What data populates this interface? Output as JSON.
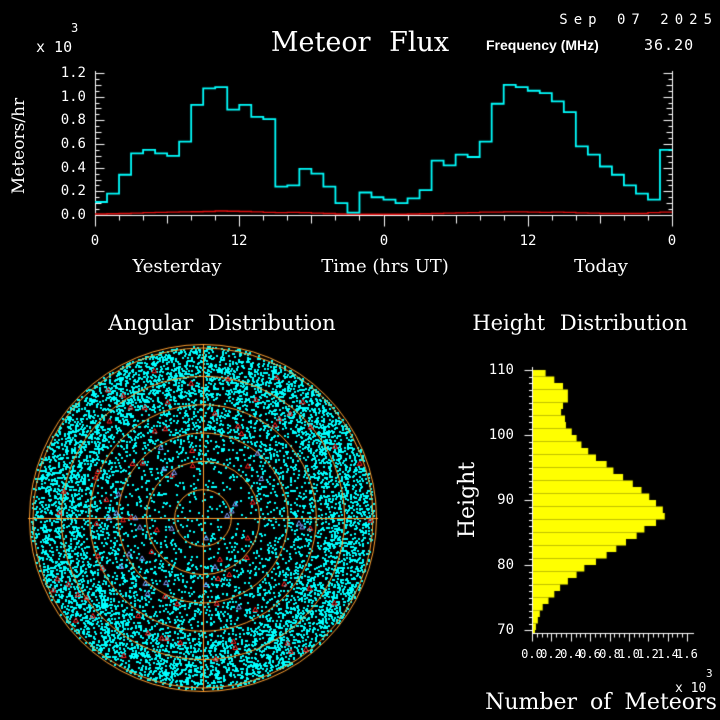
{
  "header": {
    "date": "Sep 07 2025",
    "frequency_label": "Frequency (MHz)",
    "frequency_value": "36.20"
  },
  "colors": {
    "background": "#000000",
    "axis": "#ffffff",
    "text": "#ffffff",
    "flux_line": "#00ffff",
    "flux_background_line": "#e81010",
    "rings": "#ff9f2f",
    "echo_dot": "#00ffff",
    "red_marker": "#ff2020",
    "blue_marker": "#7f9fff",
    "bars": "#ffff00"
  },
  "chart_data": [
    {
      "id": "meteor_flux",
      "type": "line",
      "line_style": "step",
      "title": "Meteor Flux",
      "ylabel": "Meteors/hr",
      "y_scale_prefix": "x 10",
      "y_scale_exponent": "3",
      "ylim": [
        0.0,
        1.2
      ],
      "ytick_labels": [
        "0.0",
        "0.2",
        "0.4",
        "0.6",
        "0.8",
        "1.0",
        "1.2"
      ],
      "xlim_hours": [
        0,
        48
      ],
      "xtick_labels": [
        "0",
        "12",
        "0",
        "12",
        "0"
      ],
      "xlabel_left": "Yesterday",
      "xlabel_center": "Time (hrs UT)",
      "xlabel_right": "Today",
      "grid": false,
      "series": [
        {
          "name": "meteor_rate",
          "color": "#00ffff",
          "values": [
            0.11,
            0.18,
            0.34,
            0.52,
            0.55,
            0.52,
            0.5,
            0.62,
            0.93,
            1.07,
            1.08,
            0.89,
            0.93,
            0.83,
            0.81,
            0.24,
            0.25,
            0.39,
            0.35,
            0.24,
            0.1,
            0.02,
            0.19,
            0.15,
            0.13,
            0.1,
            0.14,
            0.21,
            0.46,
            0.42,
            0.51,
            0.49,
            0.62,
            0.94,
            1.1,
            1.08,
            1.05,
            1.03,
            0.96,
            0.87,
            0.58,
            0.51,
            0.41,
            0.34,
            0.25,
            0.18,
            0.13,
            0.55
          ]
        },
        {
          "name": "background_rate",
          "color": "#e81010",
          "values": [
            0.008,
            0.01,
            0.013,
            0.016,
            0.02,
            0.022,
            0.024,
            0.026,
            0.028,
            0.03,
            0.034,
            0.032,
            0.03,
            0.026,
            0.022,
            0.02,
            0.022,
            0.02,
            0.016,
            0.013,
            0.008,
            0.006,
            0.006,
            0.006,
            0.006,
            0.006,
            0.008,
            0.01,
            0.013,
            0.016,
            0.018,
            0.02,
            0.024,
            0.024,
            0.026,
            0.026,
            0.024,
            0.022,
            0.024,
            0.022,
            0.018,
            0.016,
            0.013,
            0.013,
            0.013,
            0.013,
            0.02,
            0.024
          ]
        }
      ]
    },
    {
      "id": "angular_distribution",
      "type": "scatter",
      "title": "Angular Distribution",
      "projection": "polar",
      "ring_count": 6,
      "outer_double_ring": true,
      "seed": 20250907,
      "points": {
        "echoes": 9000,
        "red_markers": 75,
        "blue_markers": 26
      },
      "density_bands": [
        {
          "fraction": 0.02,
          "r0": 0.0,
          "r1": 0.28
        },
        {
          "fraction": 0.08,
          "r0": 0.28,
          "r1": 0.5
        },
        {
          "fraction": 0.2,
          "r0": 0.5,
          "r1": 0.72
        },
        {
          "fraction": 0.7,
          "r0": 0.72,
          "r1": 1.01
        }
      ],
      "red_marker_radial_range": [
        0.25,
        1.0
      ],
      "blue_marker_radial_range": [
        0.05,
        0.6
      ]
    },
    {
      "id": "height_distribution",
      "type": "bar",
      "orientation": "horizontal",
      "title": "Height Distribution",
      "ylabel": "Height",
      "xlabel": "Number of Meteors",
      "x_scale_prefix": "x 10",
      "x_scale_exponent": "3",
      "xlim": [
        0.0,
        1.6
      ],
      "xtick_labels": [
        "0.0",
        "0.2",
        "0.4",
        "0.6",
        "0.8",
        "1.0",
        "1.2",
        "1.4",
        "1.6"
      ],
      "ylim": [
        70,
        110
      ],
      "ytick_labels": [
        "70",
        "80",
        "90",
        "100",
        "110"
      ],
      "bar_color": "#ffff00",
      "heights": [
        110,
        109,
        108,
        107,
        106,
        105,
        104,
        103,
        102,
        101,
        100,
        99,
        98,
        97,
        96,
        95,
        94,
        93,
        92,
        91,
        90,
        89,
        88,
        87,
        86,
        85,
        84,
        83,
        82,
        81,
        80,
        79,
        78,
        77,
        76,
        75,
        74,
        73,
        72,
        71,
        70
      ],
      "values": [
        0.13,
        0.22,
        0.31,
        0.36,
        0.36,
        0.31,
        0.29,
        0.33,
        0.34,
        0.4,
        0.45,
        0.5,
        0.57,
        0.65,
        0.76,
        0.83,
        0.93,
        1.03,
        1.12,
        1.2,
        1.27,
        1.34,
        1.36,
        1.27,
        1.15,
        1.07,
        0.96,
        0.86,
        0.76,
        0.65,
        0.53,
        0.45,
        0.36,
        0.28,
        0.22,
        0.16,
        0.1,
        0.07,
        0.05,
        0.03,
        0.02
      ]
    }
  ]
}
